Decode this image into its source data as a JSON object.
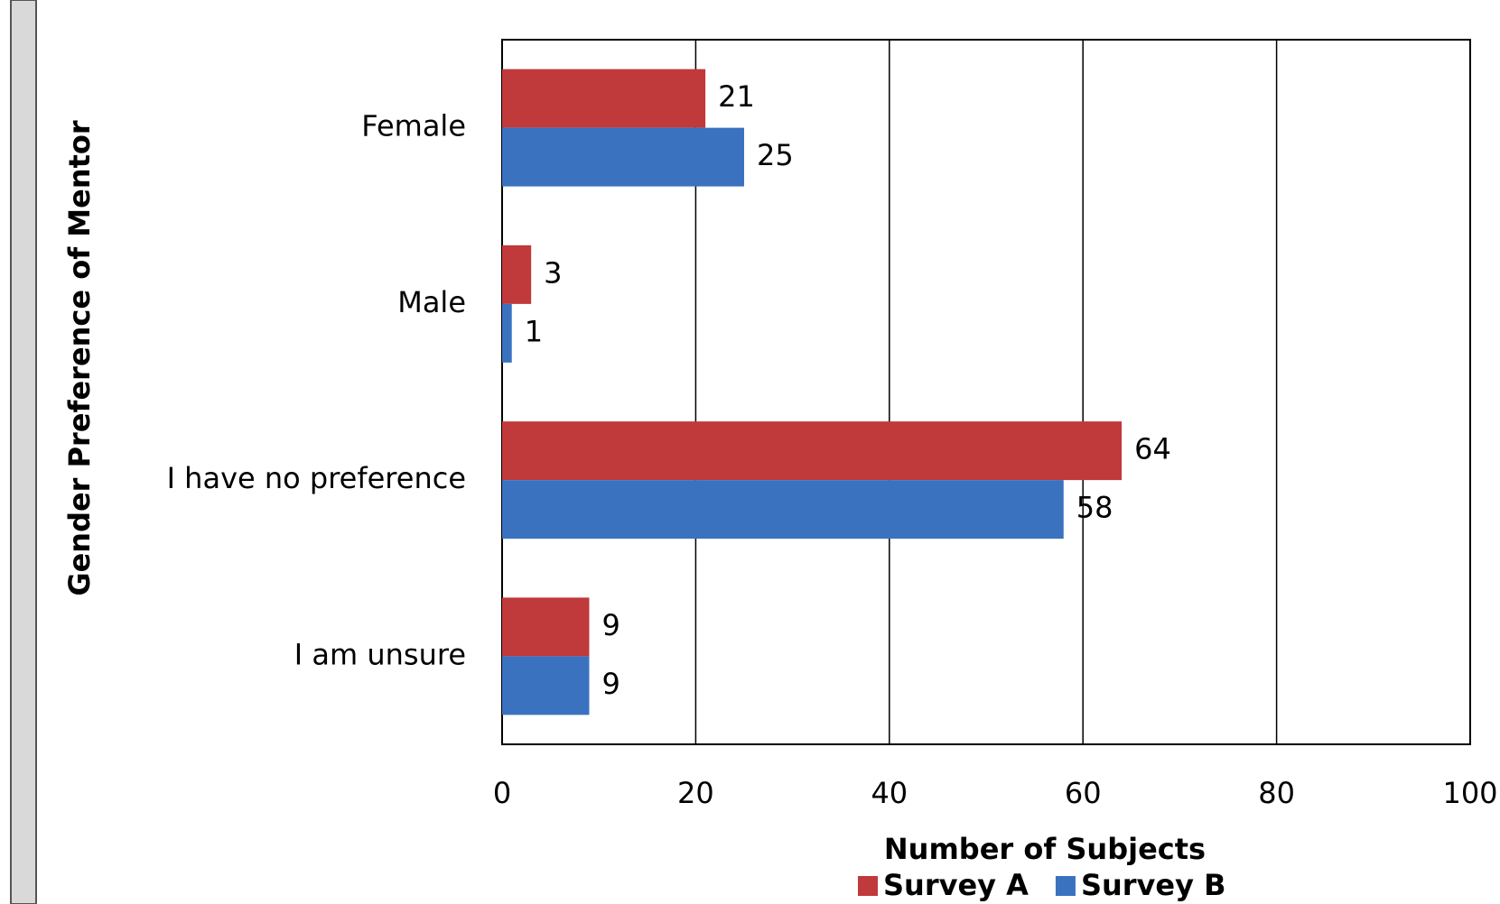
{
  "chart_data": {
    "type": "barh",
    "categories": [
      "Female",
      "Male",
      "I have no preference",
      "I am unsure"
    ],
    "series": [
      {
        "name": "Survey A",
        "color": "#c0393b",
        "values": [
          21,
          3,
          64,
          9
        ]
      },
      {
        "name": "Survey B",
        "color": "#3a72c0",
        "values": [
          25,
          1,
          58,
          9
        ]
      }
    ],
    "xlabel": "Number of Subjects",
    "ylabel": "Gender Preference of Mentor",
    "xlim": [
      0,
      100
    ],
    "xticks": [
      0,
      20,
      40,
      60,
      80,
      100
    ],
    "grid": true,
    "legend": "bottom"
  }
}
